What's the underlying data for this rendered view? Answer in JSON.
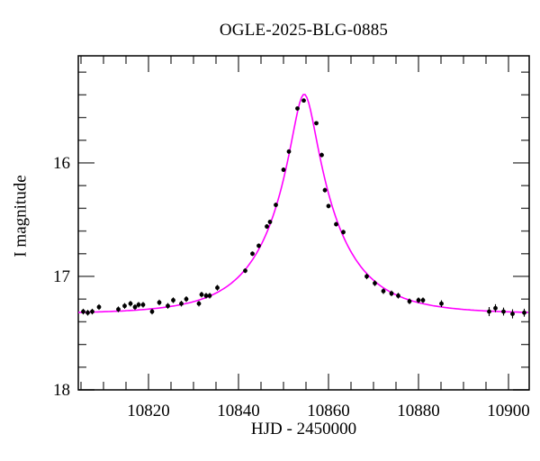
{
  "chart_data": {
    "type": "scatter",
    "title": "OGLE-2025-BLG-0885",
    "xlabel": "HJD - 2450000",
    "ylabel": "I magnitude",
    "xlim": [
      10804.4,
      10904.6
    ],
    "ylim": [
      18.0,
      15.056
    ],
    "y_axis_inverted_magnitude": true,
    "x_major_ticks": [
      10820,
      10840,
      10860,
      10880,
      10900
    ],
    "x_minor_tick_step": 5,
    "y_major_ticks": [
      16,
      17,
      18
    ],
    "y_minor_tick_step": 0.2,
    "grid": false,
    "points_format": [
      "hjd_minus_2450000",
      "i_magnitude",
      "mag_error"
    ],
    "points": [
      [
        10805.5,
        17.31,
        0.025
      ],
      [
        10806.5,
        17.32,
        0.025
      ],
      [
        10807.5,
        17.31,
        0.025
      ],
      [
        10809.0,
        17.27,
        0.025
      ],
      [
        10813.3,
        17.29,
        0.025
      ],
      [
        10814.7,
        17.26,
        0.025
      ],
      [
        10816.0,
        17.24,
        0.025
      ],
      [
        10817.0,
        17.27,
        0.025
      ],
      [
        10817.8,
        17.25,
        0.025
      ],
      [
        10818.8,
        17.25,
        0.025
      ],
      [
        10820.8,
        17.31,
        0.025
      ],
      [
        10822.4,
        17.23,
        0.025
      ],
      [
        10824.3,
        17.26,
        0.025
      ],
      [
        10825.5,
        17.21,
        0.025
      ],
      [
        10827.3,
        17.24,
        0.025
      ],
      [
        10828.4,
        17.2,
        0.025
      ],
      [
        10831.2,
        17.24,
        0.025
      ],
      [
        10831.8,
        17.16,
        0.025
      ],
      [
        10832.8,
        17.17,
        0.025
      ],
      [
        10833.6,
        17.17,
        0.025
      ],
      [
        10835.3,
        17.1,
        0.025
      ],
      [
        10841.5,
        16.95,
        0.02
      ],
      [
        10843.1,
        16.8,
        0.02
      ],
      [
        10844.5,
        16.73,
        0.02
      ],
      [
        10846.3,
        16.56,
        0.02
      ],
      [
        10847.0,
        16.52,
        0.02
      ],
      [
        10848.3,
        16.37,
        0.02
      ],
      [
        10850.0,
        16.06,
        0.02
      ],
      [
        10851.2,
        15.9,
        0.02
      ],
      [
        10853.1,
        15.52,
        0.015
      ],
      [
        10854.5,
        15.45,
        0.015
      ],
      [
        10857.3,
        15.65,
        0.015
      ],
      [
        10858.5,
        15.93,
        0.02
      ],
      [
        10859.2,
        16.24,
        0.02
      ],
      [
        10860.0,
        16.38,
        0.02
      ],
      [
        10861.7,
        16.54,
        0.02
      ],
      [
        10863.3,
        16.61,
        0.02
      ],
      [
        10868.5,
        17.0,
        0.025
      ],
      [
        10870.3,
        17.06,
        0.025
      ],
      [
        10872.2,
        17.13,
        0.025
      ],
      [
        10874.0,
        17.15,
        0.025
      ],
      [
        10875.5,
        17.17,
        0.025
      ],
      [
        10878.0,
        17.22,
        0.025
      ],
      [
        10880.0,
        17.21,
        0.025
      ],
      [
        10881.0,
        17.21,
        0.025
      ],
      [
        10885.1,
        17.24,
        0.03
      ],
      [
        10895.7,
        17.31,
        0.04
      ],
      [
        10897.1,
        17.28,
        0.035
      ],
      [
        10898.9,
        17.31,
        0.035
      ],
      [
        10900.9,
        17.33,
        0.04
      ],
      [
        10903.5,
        17.32,
        0.035
      ]
    ],
    "model_curve": {
      "type": "paczynski_microlensing",
      "t0": 10854.6,
      "tE_days": 15.0,
      "u0": 0.17,
      "baseline_mag": 17.33,
      "peak_mag": 15.4
    },
    "colors": {
      "data_points": "#000000",
      "model_curve": "#ff00ff",
      "frame": "#000000",
      "ticks": "#444444",
      "text": "#000000",
      "background": "#ffffff"
    }
  }
}
